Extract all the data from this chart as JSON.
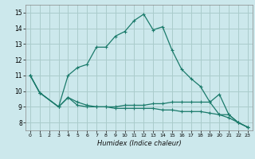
{
  "title": "",
  "xlabel": "Humidex (Indice chaleur)",
  "bg_color": "#cce8ec",
  "grid_color": "#aacccc",
  "line_color": "#1a7a6a",
  "xlim": [
    -0.5,
    23.5
  ],
  "ylim": [
    7.5,
    15.5
  ],
  "yticks": [
    8,
    9,
    10,
    11,
    12,
    13,
    14,
    15
  ],
  "xticks": [
    0,
    1,
    2,
    3,
    4,
    5,
    6,
    7,
    8,
    9,
    10,
    11,
    12,
    13,
    14,
    15,
    16,
    17,
    18,
    19,
    20,
    21,
    22,
    23
  ],
  "line1_x": [
    0,
    1,
    3,
    4,
    5,
    6,
    7,
    8,
    9,
    10,
    11,
    12,
    13,
    14,
    15,
    16,
    17,
    18,
    19,
    20,
    21,
    22,
    23
  ],
  "line1_y": [
    11.0,
    9.9,
    9.0,
    11.0,
    11.5,
    11.7,
    12.8,
    12.8,
    13.5,
    13.8,
    14.5,
    14.9,
    13.9,
    14.1,
    12.6,
    11.4,
    10.8,
    10.3,
    9.3,
    9.8,
    8.5,
    8.0,
    7.7
  ],
  "line2_x": [
    0,
    1,
    3,
    4,
    5,
    6,
    7,
    8,
    9,
    10,
    11,
    12,
    13,
    14,
    15,
    16,
    17,
    18,
    19,
    20,
    21,
    22,
    23
  ],
  "line2_y": [
    11.0,
    9.9,
    9.0,
    9.6,
    9.1,
    9.0,
    9.0,
    9.0,
    9.0,
    9.1,
    9.1,
    9.1,
    9.2,
    9.2,
    9.3,
    9.3,
    9.3,
    9.3,
    9.3,
    8.5,
    8.5,
    8.0,
    7.7
  ],
  "line3_x": [
    0,
    1,
    3,
    4,
    5,
    6,
    7,
    8,
    9,
    10,
    11,
    12,
    13,
    14,
    15,
    16,
    17,
    18,
    19,
    20,
    21,
    22,
    23
  ],
  "line3_y": [
    11.0,
    9.9,
    9.0,
    9.6,
    9.3,
    9.1,
    9.0,
    9.0,
    8.9,
    8.9,
    8.9,
    8.9,
    8.9,
    8.8,
    8.8,
    8.7,
    8.7,
    8.7,
    8.6,
    8.5,
    8.3,
    8.0,
    7.7
  ]
}
